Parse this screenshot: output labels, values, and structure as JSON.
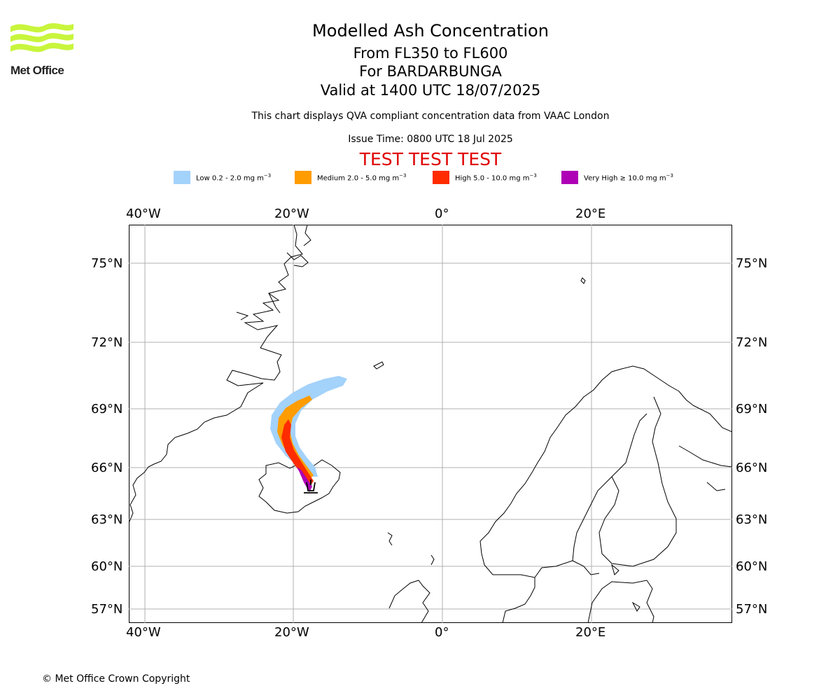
{
  "logo": {
    "name": "Met Office"
  },
  "title": {
    "main": "Modelled Ash Concentration",
    "levels": "From FL350 to FL600",
    "volcano": "For BARDARBUNGA",
    "valid": "Valid at 1400 UTC 18/07/2025",
    "note": "This chart displays QVA compliant concentration data from VAAC London",
    "issue": "Issue Time: 0800 UTC 18 Jul 2025",
    "test": "TEST TEST TEST"
  },
  "legend": [
    {
      "label": "Low 0.2 - 2.0 mg m",
      "unit_exp": "−3",
      "color": "#a3d2fb"
    },
    {
      "label": "Medium 2.0 - 5.0 mg m",
      "unit_exp": "−3",
      "color": "#ff9c00"
    },
    {
      "label": "High 5.0 - 10.0 mg m",
      "unit_exp": "−3",
      "color": "#ff2c00"
    },
    {
      "label": "Very High  ≥  10.0 mg m",
      "unit_exp": "−3",
      "color": "#ae00b5"
    }
  ],
  "map": {
    "lon_ticks": [
      "40°W",
      "20°W",
      "0°",
      "20°E"
    ],
    "lat_ticks": [
      "75°N",
      "72°N",
      "69°N",
      "66°N",
      "63°N",
      "60°N",
      "57°N"
    ],
    "grid": true,
    "volcano_marker": "volcano-icon",
    "volcano_name": "BARDARBUNGA"
  },
  "footer": {
    "copyright": "© Met Office Crown Copyright"
  }
}
